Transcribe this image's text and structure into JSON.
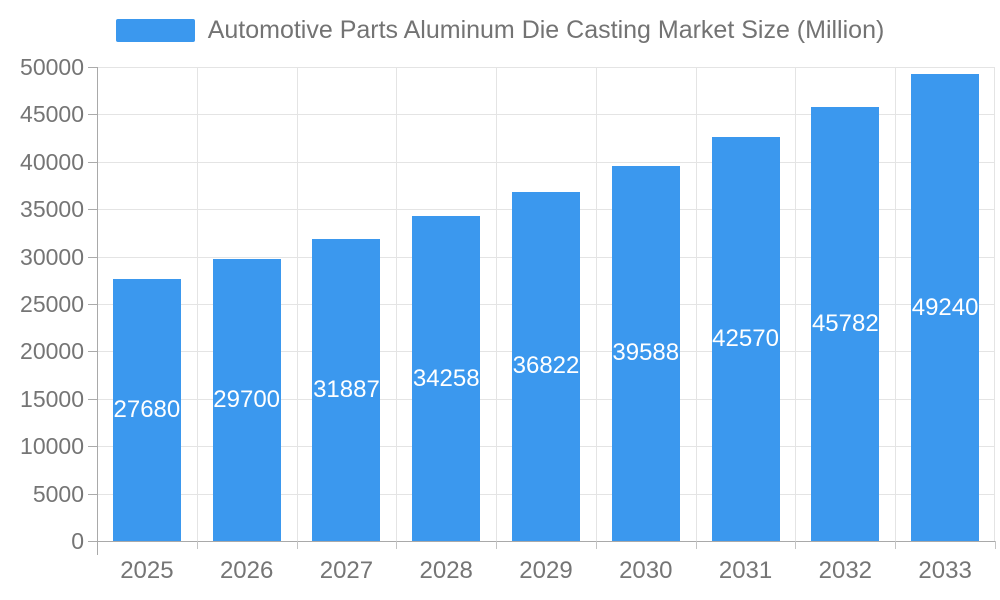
{
  "chart_data": {
    "type": "bar",
    "title": "Automotive Parts Aluminum Die Casting Market Size (Million)",
    "series_name": "Automotive Parts Aluminum Die Casting Market Size (Million)",
    "categories": [
      "2025",
      "2026",
      "2027",
      "2028",
      "2029",
      "2030",
      "2031",
      "2032",
      "2033"
    ],
    "values": [
      27680,
      29700,
      31887,
      34258,
      36822,
      39588,
      42570,
      45782,
      49240
    ],
    "xlabel": "",
    "ylabel": "",
    "ylim": [
      0,
      50000
    ],
    "y_ticks": [
      0,
      5000,
      10000,
      15000,
      20000,
      25000,
      30000,
      35000,
      40000,
      45000,
      50000
    ],
    "grid": true,
    "legend_position": "top",
    "bar_color": "#3b98ee",
    "bar_label_color": "#ffffff",
    "axis_text_color": "#757575",
    "grid_color": "#e4e4e4",
    "axis_line_color": "#a9a9a9"
  }
}
